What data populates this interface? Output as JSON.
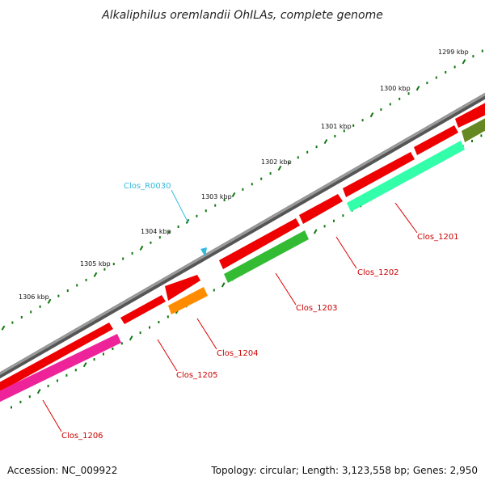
{
  "title": "Alkaliphilus oremlandii OhILAs, complete genome",
  "footer": {
    "accession": "Accession: NC_009922",
    "summary": "Topology: circular; Length: 3,123,558 bp; Genes: 2,950"
  },
  "ruler": {
    "ticks": [
      {
        "label": "1299 kbp"
      },
      {
        "label": "1300 kbp"
      },
      {
        "label": "1301 kbp"
      },
      {
        "label": "1302 kbp"
      },
      {
        "label": "1303 kbp"
      },
      {
        "label": "1304 kbp"
      },
      {
        "label": "1305 kbp"
      },
      {
        "label": "1306 kbp"
      }
    ]
  },
  "genes": [
    {
      "label": "Clos_1201"
    },
    {
      "label": "Clos_1202"
    },
    {
      "label": "Clos_1203"
    },
    {
      "label": "Clos_1204"
    },
    {
      "label": "Clos_1205"
    },
    {
      "label": "Clos_1206"
    }
  ],
  "rna": {
    "label": "Clos_R0030"
  },
  "colors": {
    "backbone": "#808080",
    "cds": "#ee0000",
    "orange": "#ff8c00",
    "teal": "#33ffaa",
    "green": "#33bb33",
    "olive": "#668822",
    "magenta": "#ee2299",
    "tick": "#117711",
    "rna": "#33bbdd"
  }
}
